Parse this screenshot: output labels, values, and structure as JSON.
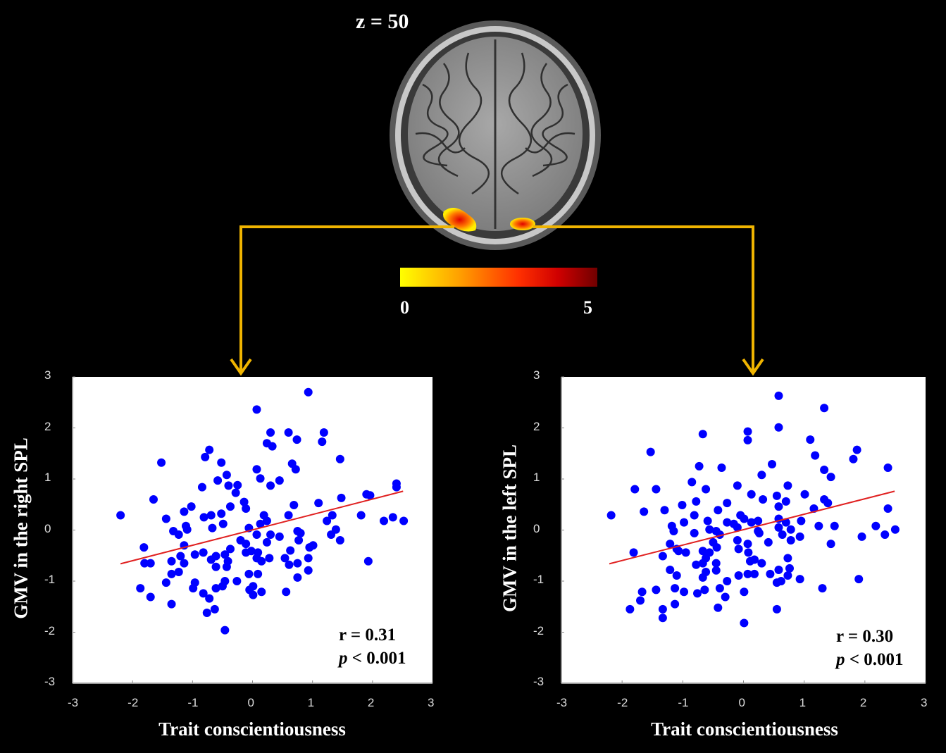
{
  "figure": {
    "slice_label": "z = 50",
    "colorbar": {
      "min_label": "0",
      "max_label": "5",
      "colors": [
        "#ffff00",
        "#ff8c00",
        "#ff0000",
        "#8b0000"
      ]
    },
    "arrow_color": "#f0b400"
  },
  "chart_data": [
    {
      "type": "scatter",
      "xlabel": "Trait conscientiousness",
      "ylabel": "GMV in the right SPL",
      "xlim": [
        -3,
        3
      ],
      "ylim": [
        -3,
        3
      ],
      "xticks": [
        "-3",
        "-2",
        "-1",
        "0",
        "1",
        "2",
        "3"
      ],
      "yticks": [
        "3",
        "2",
        "1",
        "0",
        "-1",
        "-2",
        "-3"
      ],
      "grid": false,
      "point_color": "#0000ff",
      "fit_color": "#e02020",
      "annotation": {
        "r": "r = 0.31",
        "p_italic": "p",
        "p_rest": " < 0.001"
      },
      "fit_line": [
        [
          -2.2,
          -0.66
        ],
        [
          2.51,
          0.76
        ]
      ],
      "points": [
        [
          -2.2,
          0.29
        ],
        [
          0.93,
          2.7
        ],
        [
          0.07,
          2.36
        ],
        [
          0.3,
          1.91
        ],
        [
          0.6,
          1.91
        ],
        [
          0.74,
          1.77
        ],
        [
          1.19,
          1.91
        ],
        [
          1.16,
          1.73
        ],
        [
          0.24,
          1.7
        ],
        [
          0.33,
          1.64
        ],
        [
          -0.72,
          1.57
        ],
        [
          -0.79,
          1.43
        ],
        [
          -1.52,
          1.32
        ],
        [
          -0.52,
          1.32
        ],
        [
          1.46,
          1.39
        ],
        [
          0.66,
          1.3
        ],
        [
          0.72,
          1.19
        ],
        [
          0.07,
          1.19
        ],
        [
          -0.43,
          1.08
        ],
        [
          0.13,
          1.01
        ],
        [
          -0.58,
          0.97
        ],
        [
          0.45,
          0.97
        ],
        [
          -0.4,
          0.87
        ],
        [
          -0.25,
          0.88
        ],
        [
          0.3,
          0.87
        ],
        [
          -0.84,
          0.84
        ],
        [
          -0.28,
          0.73
        ],
        [
          2.4,
          0.91
        ],
        [
          2.4,
          0.84
        ],
        [
          -1.65,
          0.6
        ],
        [
          1.9,
          0.7
        ],
        [
          1.96,
          0.68
        ],
        [
          1.48,
          0.63
        ],
        [
          -0.14,
          0.55
        ],
        [
          -0.11,
          0.42
        ],
        [
          0.69,
          0.49
        ],
        [
          1.1,
          0.53
        ],
        [
          -0.37,
          0.46
        ],
        [
          -1.02,
          0.46
        ],
        [
          -1.14,
          0.36
        ],
        [
          -1.44,
          0.22
        ],
        [
          -0.81,
          0.25
        ],
        [
          -0.69,
          0.29
        ],
        [
          -0.52,
          0.32
        ],
        [
          0.19,
          0.29
        ],
        [
          0.6,
          0.29
        ],
        [
          1.81,
          0.29
        ],
        [
          1.33,
          0.29
        ],
        [
          1.24,
          0.18
        ],
        [
          0.24,
          0.18
        ],
        [
          2.19,
          0.18
        ],
        [
          2.34,
          0.25
        ],
        [
          2.52,
          0.18
        ],
        [
          -0.49,
          0.12
        ],
        [
          0.13,
          0.12
        ],
        [
          -1.11,
          0.08
        ],
        [
          -1.09,
          0.01
        ],
        [
          -0.67,
          0.04
        ],
        [
          -0.06,
          0.04
        ],
        [
          -1.32,
          -0.02
        ],
        [
          -1.23,
          -0.09
        ],
        [
          0.07,
          -0.09
        ],
        [
          0.75,
          -0.02
        ],
        [
          0.8,
          -0.06
        ],
        [
          0.3,
          -0.09
        ],
        [
          0.45,
          -0.13
        ],
        [
          1.39,
          0.01
        ],
        [
          1.31,
          -0.09
        ],
        [
          0.24,
          -0.24
        ],
        [
          0.77,
          -0.2
        ],
        [
          1.46,
          -0.2
        ],
        [
          -0.2,
          -0.2
        ],
        [
          -0.11,
          -0.27
        ],
        [
          -1.14,
          -0.3
        ],
        [
          -1.81,
          -0.34
        ],
        [
          1.01,
          -0.3
        ],
        [
          0.95,
          -0.34
        ],
        [
          -0.37,
          -0.37
        ],
        [
          0.63,
          -0.4
        ],
        [
          -0.11,
          -0.44
        ],
        [
          -0.02,
          -0.41
        ],
        [
          0.09,
          -0.44
        ],
        [
          -0.82,
          -0.44
        ],
        [
          -0.96,
          -0.48
        ],
        [
          -1.2,
          -0.51
        ],
        [
          -0.46,
          -0.48
        ],
        [
          -0.61,
          -0.51
        ],
        [
          0.07,
          -0.55
        ],
        [
          0.28,
          -0.55
        ],
        [
          0.54,
          -0.55
        ],
        [
          0.93,
          -0.55
        ],
        [
          -0.69,
          -0.58
        ],
        [
          -0.41,
          -0.61
        ],
        [
          0.15,
          -0.61
        ],
        [
          -1.8,
          -0.65
        ],
        [
          -1.7,
          -0.65
        ],
        [
          -1.35,
          -0.61
        ],
        [
          -1.14,
          -0.65
        ],
        [
          0.75,
          -0.65
        ],
        [
          0.61,
          -0.68
        ],
        [
          1.93,
          -0.61
        ],
        [
          -0.61,
          -0.72
        ],
        [
          -0.43,
          -0.72
        ],
        [
          -1.23,
          -0.82
        ],
        [
          -1.35,
          -0.86
        ],
        [
          -0.06,
          -0.86
        ],
        [
          0.09,
          -0.86
        ],
        [
          0.93,
          -0.79
        ],
        [
          0.75,
          -0.93
        ],
        [
          -1.44,
          -1.03
        ],
        [
          -0.96,
          -1.03
        ],
        [
          -0.99,
          -1.14
        ],
        [
          -0.26,
          -1.0
        ],
        [
          -0.46,
          -1.0
        ],
        [
          -1.87,
          -1.14
        ],
        [
          -0.61,
          -1.14
        ],
        [
          -0.5,
          -1.1
        ],
        [
          0.01,
          -1.1
        ],
        [
          -0.05,
          -1.17
        ],
        [
          0.15,
          -1.21
        ],
        [
          0.56,
          -1.21
        ],
        [
          0.01,
          -1.27
        ],
        [
          -0.82,
          -1.24
        ],
        [
          -1.7,
          -1.31
        ],
        [
          -0.72,
          -1.34
        ],
        [
          -1.35,
          -1.45
        ],
        [
          -0.63,
          -1.55
        ],
        [
          -0.76,
          -1.62
        ],
        [
          -0.46,
          -1.96
        ]
      ]
    },
    {
      "type": "scatter",
      "xlabel": "Trait conscientiousness",
      "ylabel": "GMV in the left SPL",
      "xlim": [
        -3,
        3
      ],
      "ylim": [
        -3,
        3
      ],
      "xticks": [
        "-3",
        "-2",
        "-1",
        "0",
        "1",
        "2",
        "3"
      ],
      "yticks": [
        "3",
        "2",
        "1",
        "0",
        "-1",
        "-2",
        "-3"
      ],
      "grid": false,
      "point_color": "#0000ff",
      "fit_color": "#e02020",
      "annotation": {
        "r": "r = 0.30",
        "p_italic": "p",
        "p_rest": " < 0.001"
      },
      "fit_line": [
        [
          -2.21,
          -0.66
        ],
        [
          2.49,
          0.76
        ]
      ],
      "points": [
        [
          -2.18,
          0.29
        ],
        [
          0.58,
          2.63
        ],
        [
          1.33,
          2.39
        ],
        [
          0.58,
          2.01
        ],
        [
          0.07,
          1.93
        ],
        [
          0.07,
          1.76
        ],
        [
          -0.67,
          1.88
        ],
        [
          1.1,
          1.77
        ],
        [
          1.87,
          1.57
        ],
        [
          1.81,
          1.39
        ],
        [
          1.18,
          1.46
        ],
        [
          -1.53,
          1.53
        ],
        [
          -0.73,
          1.25
        ],
        [
          -0.36,
          1.22
        ],
        [
          0.47,
          1.29
        ],
        [
          2.38,
          1.22
        ],
        [
          1.33,
          1.18
        ],
        [
          1.44,
          1.04
        ],
        [
          0.3,
          1.08
        ],
        [
          -0.85,
          0.94
        ],
        [
          -0.1,
          0.87
        ],
        [
          0.73,
          0.87
        ],
        [
          -1.79,
          0.8
        ],
        [
          -1.44,
          0.8
        ],
        [
          -0.62,
          0.8
        ],
        [
          0.13,
          0.7
        ],
        [
          1.01,
          0.7
        ],
        [
          0.55,
          0.67
        ],
        [
          0.32,
          0.6
        ],
        [
          0.7,
          0.56
        ],
        [
          1.33,
          0.6
        ],
        [
          1.39,
          0.53
        ],
        [
          -0.78,
          0.56
        ],
        [
          -0.27,
          0.53
        ],
        [
          -1.01,
          0.49
        ],
        [
          0.58,
          0.46
        ],
        [
          -1.64,
          0.36
        ],
        [
          -1.3,
          0.39
        ],
        [
          -0.42,
          0.39
        ],
        [
          1.16,
          0.42
        ],
        [
          2.38,
          0.42
        ],
        [
          -0.81,
          0.29
        ],
        [
          -0.05,
          0.29
        ],
        [
          0.01,
          0.22
        ],
        [
          -0.59,
          0.18
        ],
        [
          -0.27,
          0.15
        ],
        [
          0.13,
          0.15
        ],
        [
          0.24,
          0.18
        ],
        [
          0.58,
          0.22
        ],
        [
          0.7,
          0.15
        ],
        [
          0.95,
          0.18
        ],
        [
          -0.98,
          0.15
        ],
        [
          -1.18,
          0.08
        ],
        [
          -0.16,
          0.12
        ],
        [
          -0.1,
          0.05
        ],
        [
          1.24,
          0.08
        ],
        [
          1.5,
          0.08
        ],
        [
          2.18,
          0.08
        ],
        [
          2.5,
          0.01
        ],
        [
          -1.15,
          -0.02
        ],
        [
          -0.81,
          -0.06
        ],
        [
          -0.56,
          0.01
        ],
        [
          -0.45,
          -0.02
        ],
        [
          -0.39,
          -0.09
        ],
        [
          0.24,
          -0.02
        ],
        [
          0.26,
          -0.06
        ],
        [
          0.58,
          0.05
        ],
        [
          0.64,
          -0.09
        ],
        [
          0.78,
          0.01
        ],
        [
          0.93,
          -0.13
        ],
        [
          1.95,
          -0.13
        ],
        [
          2.33,
          -0.09
        ],
        [
          0.78,
          -0.2
        ],
        [
          0.41,
          -0.24
        ],
        [
          -0.1,
          -0.2
        ],
        [
          0.07,
          -0.27
        ],
        [
          -0.5,
          -0.24
        ],
        [
          -1.21,
          -0.27
        ],
        [
          -0.08,
          -0.37
        ],
        [
          1.44,
          -0.27
        ],
        [
          -0.44,
          -0.34
        ],
        [
          -1.1,
          -0.37
        ],
        [
          -1.07,
          -0.41
        ],
        [
          -0.95,
          -0.44
        ],
        [
          -1.81,
          -0.44
        ],
        [
          -0.67,
          -0.41
        ],
        [
          -0.56,
          -0.44
        ],
        [
          0.08,
          -0.44
        ],
        [
          -1.33,
          -0.51
        ],
        [
          -0.62,
          -0.55
        ],
        [
          0.73,
          -0.55
        ],
        [
          0.11,
          -0.61
        ],
        [
          0.18,
          -0.58
        ],
        [
          0.3,
          -0.65
        ],
        [
          -0.78,
          -0.68
        ],
        [
          -0.67,
          -0.65
        ],
        [
          -0.45,
          -0.65
        ],
        [
          -0.45,
          -0.79
        ],
        [
          -0.62,
          -0.82
        ],
        [
          -1.21,
          -0.78
        ],
        [
          -1.1,
          -0.89
        ],
        [
          -0.67,
          -0.93
        ],
        [
          -0.08,
          -0.89
        ],
        [
          0.07,
          -0.86
        ],
        [
          0.18,
          -0.86
        ],
        [
          0.44,
          -0.86
        ],
        [
          0.58,
          -0.78
        ],
        [
          0.76,
          -0.75
        ],
        [
          0.73,
          -0.89
        ],
        [
          0.93,
          -0.96
        ],
        [
          0.55,
          -1.03
        ],
        [
          0.62,
          -1.0
        ],
        [
          -0.27,
          -1.0
        ],
        [
          1.9,
          -0.96
        ],
        [
          1.3,
          -1.14
        ],
        [
          -1.67,
          -1.21
        ],
        [
          -1.44,
          -1.17
        ],
        [
          -1.13,
          -1.14
        ],
        [
          -0.98,
          -1.21
        ],
        [
          -0.76,
          -1.24
        ],
        [
          -0.64,
          -1.17
        ],
        [
          -0.39,
          -1.14
        ],
        [
          -0.3,
          -1.31
        ],
        [
          0.01,
          -1.21
        ],
        [
          -1.7,
          -1.38
        ],
        [
          -1.87,
          -1.55
        ],
        [
          -1.33,
          -1.55
        ],
        [
          -1.33,
          -1.72
        ],
        [
          -1.13,
          -1.45
        ],
        [
          -0.42,
          -1.52
        ],
        [
          0.55,
          -1.55
        ],
        [
          0.01,
          -1.82
        ]
      ]
    }
  ]
}
